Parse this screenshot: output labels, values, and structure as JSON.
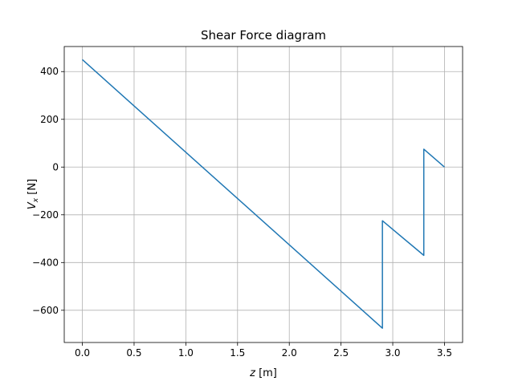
{
  "chart_data": {
    "type": "line",
    "title": "Shear Force diagram",
    "xlabel": {
      "var": "z",
      "unit": " [m]"
    },
    "ylabel": {
      "base": "V",
      "sub": "x",
      "unit": " [N]"
    },
    "xlim": [
      -0.175,
      3.675
    ],
    "ylim": [
      -735,
      505
    ],
    "xticks": [
      0.0,
      0.5,
      1.0,
      1.5,
      2.0,
      2.5,
      3.0,
      3.5
    ],
    "xtick_labels": [
      "0.0",
      "0.5",
      "1.0",
      "1.5",
      "2.0",
      "2.5",
      "3.0",
      "3.5"
    ],
    "yticks": [
      -600,
      -400,
      -200,
      0,
      200,
      400
    ],
    "ytick_labels": [
      "−600",
      "−400",
      "−200",
      "0",
      "200",
      "400"
    ],
    "grid": true,
    "line_color": "#1f77b4",
    "series": [
      {
        "x": [
          0.0,
          2.9,
          2.9,
          3.3,
          3.3,
          3.5
        ],
        "y": [
          450,
          -675,
          -225,
          -370,
          75,
          0
        ]
      }
    ]
  }
}
